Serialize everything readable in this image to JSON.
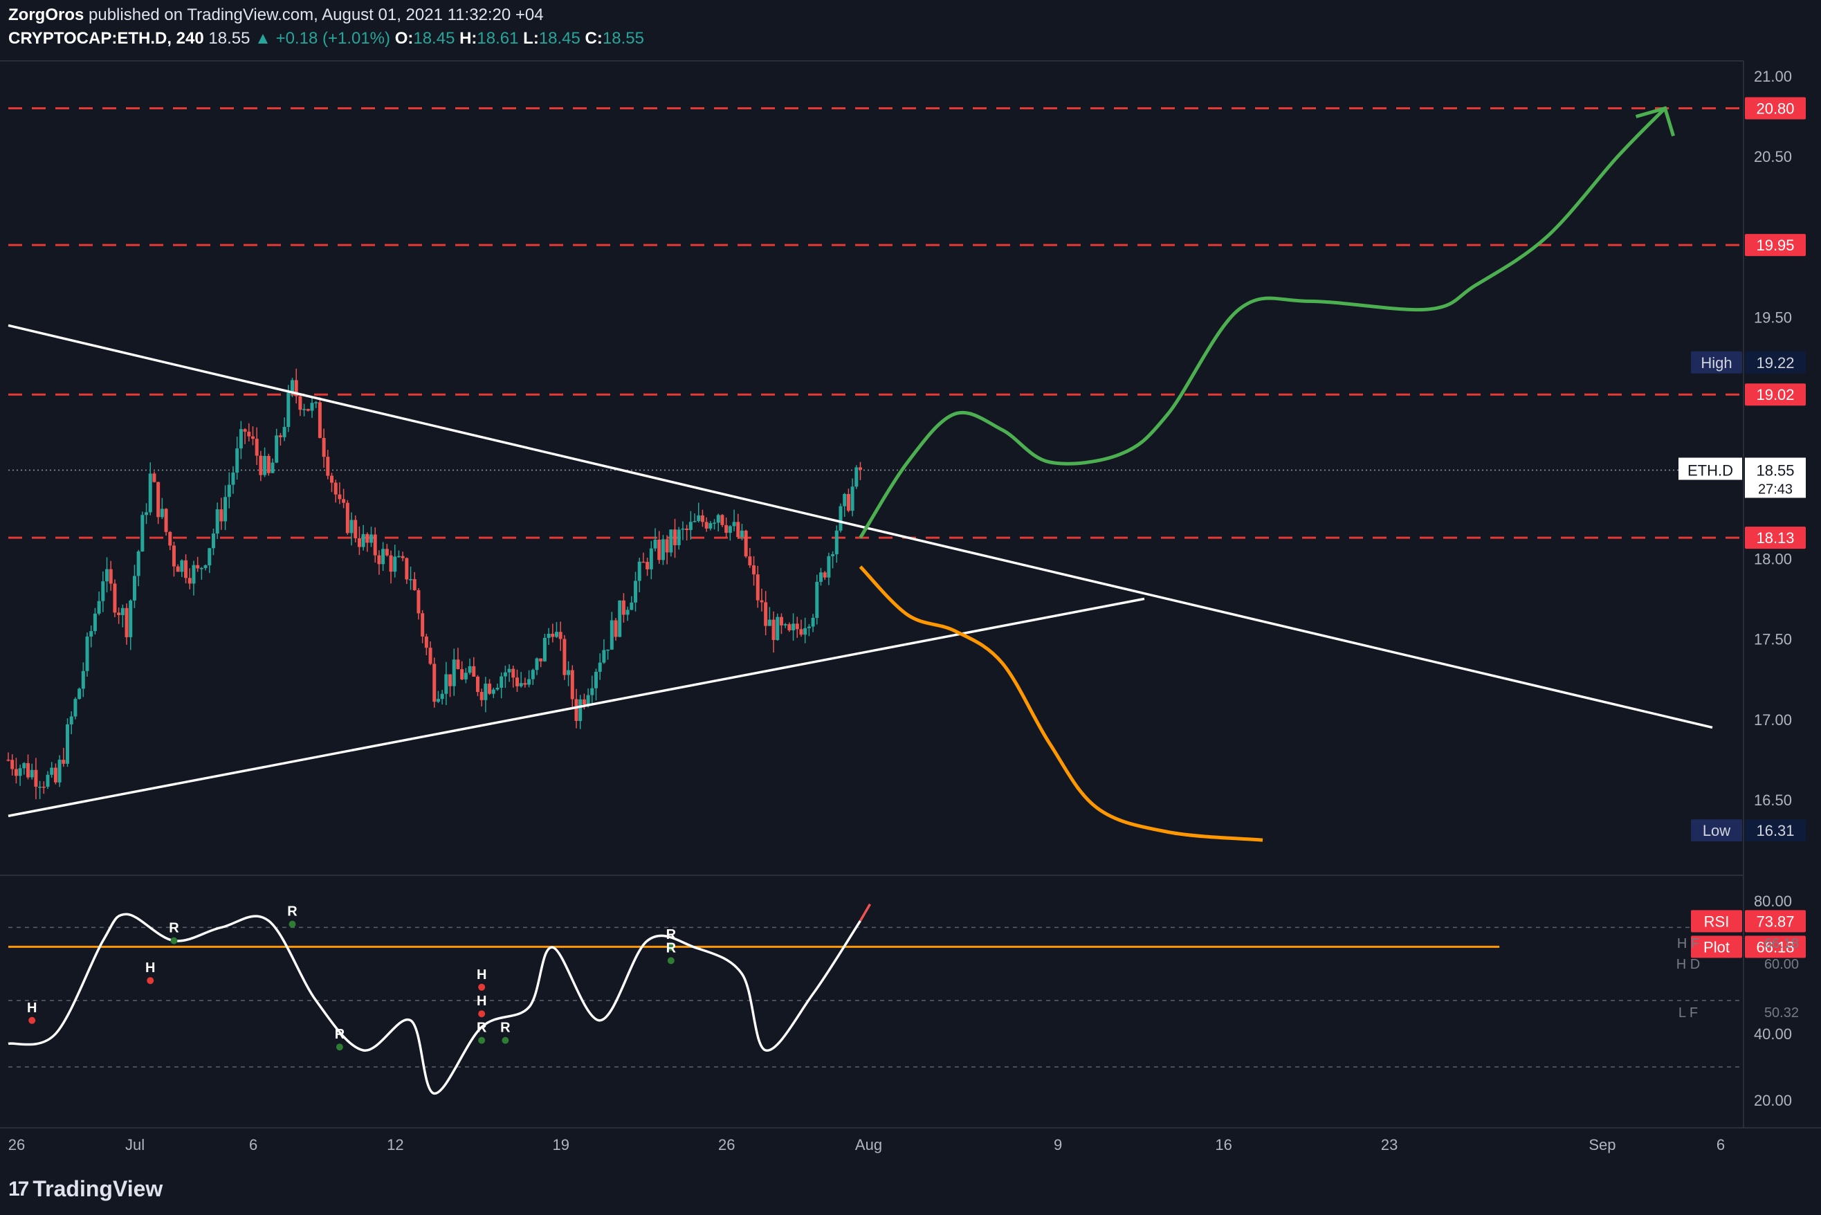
{
  "header": {
    "author": "ZorgOros",
    "published_text": "published on TradingView.com, August 01, 2021 11:32:20 +04",
    "symbol": "CRYPTOCAP:ETH.D, 240",
    "last": "18.55",
    "change": "▲ +0.18 (+1.01%)",
    "o_label": "O:",
    "o_val": "18.45",
    "h_label": "H:",
    "h_val": "18.61",
    "l_label": "L:",
    "l_val": "18.45",
    "c_label": "C:",
    "c_val": "18.55"
  },
  "footer": {
    "logo_text": "TradingView",
    "logo_mark": "17"
  },
  "colors": {
    "background": "#131722",
    "up": "#26a69a",
    "down": "#ef5350",
    "level_line": "#e53935",
    "trendline": "#ffffff",
    "bull_path": "#4caf50",
    "bear_path": "#ff9800",
    "rsi_line": "#ffffff",
    "rsi_hline": "#ff9800"
  },
  "price_axis": {
    "ticks": [
      "21.00",
      "20.50",
      "19.50",
      "18.00",
      "17.50",
      "17.00",
      "16.50"
    ],
    "level_tags": [
      "20.80",
      "19.95",
      "19.02",
      "18.13"
    ],
    "high_tag": {
      "label": "High",
      "value": "19.22"
    },
    "low_tag": {
      "label": "Low",
      "value": "16.31"
    },
    "last_tag": {
      "label": "ETH.D",
      "value": "18.55",
      "countdown": "27:43"
    }
  },
  "rsi_axis": {
    "ticks": [
      "80.00",
      "40.00",
      "20.00"
    ],
    "rsi_tag": {
      "label": "RSI",
      "value": "73.87"
    },
    "plot_tag": {
      "label": "Plot",
      "value": "66.18"
    },
    "side_labels": [
      "H F",
      "66.18",
      "H D",
      "60.00",
      "L F",
      "50.32"
    ]
  },
  "rsi_markers": [
    "H",
    "R",
    "H",
    "R",
    "R",
    "H",
    "R",
    "H",
    "R",
    "R",
    "R"
  ],
  "time_axis": [
    "26",
    "Jul",
    "6",
    "12",
    "19",
    "26",
    "Aug",
    "9",
    "16",
    "23",
    "Sep",
    "6"
  ],
  "chart_data": [
    {
      "type": "candlestick",
      "symbol": "CRYPTOCAP:ETH.D",
      "interval": "240",
      "x_range": [
        "2021-06-26",
        "2021-09-06"
      ],
      "ylim": [
        16.2,
        21.1
      ],
      "close_path": [
        [
          "2021-06-26",
          16.75
        ],
        [
          "2021-06-28",
          16.6
        ],
        [
          "2021-06-29",
          17.2
        ],
        [
          "2021-06-30",
          17.9
        ],
        [
          "2021-07-01",
          17.6
        ],
        [
          "2021-07-02",
          18.5
        ],
        [
          "2021-07-03",
          18.0
        ],
        [
          "2021-07-04",
          17.9
        ],
        [
          "2021-07-05",
          18.3
        ],
        [
          "2021-07-06",
          18.8
        ],
        [
          "2021-07-07",
          18.5
        ],
        [
          "2021-07-08",
          19.05
        ],
        [
          "2021-07-09",
          18.9
        ],
        [
          "2021-07-10",
          18.3
        ],
        [
          "2021-07-11",
          18.1
        ],
        [
          "2021-07-12",
          18.0
        ],
        [
          "2021-07-13",
          17.9
        ],
        [
          "2021-07-14",
          17.2
        ],
        [
          "2021-07-15",
          17.3
        ],
        [
          "2021-07-16",
          17.2
        ],
        [
          "2021-07-17",
          17.3
        ],
        [
          "2021-07-18",
          17.2
        ],
        [
          "2021-07-19",
          17.6
        ],
        [
          "2021-07-20",
          17.05
        ],
        [
          "2021-07-21",
          17.4
        ],
        [
          "2021-07-22",
          17.7
        ],
        [
          "2021-07-23",
          18.0
        ],
        [
          "2021-07-24",
          18.1
        ],
        [
          "2021-07-25",
          18.2
        ],
        [
          "2021-07-26",
          18.3
        ],
        [
          "2021-07-27",
          18.1
        ],
        [
          "2021-07-28",
          17.6
        ],
        [
          "2021-07-29",
          17.5
        ],
        [
          "2021-07-30",
          17.7
        ],
        [
          "2021-07-31",
          18.2
        ],
        [
          "2021-08-01",
          18.55
        ]
      ],
      "horizontal_levels": [
        20.8,
        19.95,
        19.02,
        18.13
      ],
      "last_price": 18.55,
      "period_high": 19.22,
      "period_low": 16.31,
      "descending_trendline": [
        [
          "2021-06-26",
          19.45
        ],
        [
          "2021-09-06",
          16.95
        ]
      ],
      "ascending_trendline": [
        [
          "2021-06-26",
          16.4
        ],
        [
          "2021-08-13",
          17.75
        ]
      ],
      "bullish_projection": [
        [
          "2021-08-01",
          18.13
        ],
        [
          "2021-08-03",
          18.6
        ],
        [
          "2021-08-05",
          18.9
        ],
        [
          "2021-08-07",
          18.8
        ],
        [
          "2021-08-09",
          18.6
        ],
        [
          "2021-08-12",
          18.65
        ],
        [
          "2021-08-14",
          18.9
        ],
        [
          "2021-08-17",
          19.55
        ],
        [
          "2021-08-20",
          19.6
        ],
        [
          "2021-08-25",
          19.55
        ],
        [
          "2021-08-27",
          19.7
        ],
        [
          "2021-08-30",
          20.0
        ],
        [
          "2021-09-02",
          20.5
        ],
        [
          "2021-09-04",
          20.8
        ]
      ],
      "bearish_projection": [
        [
          "2021-08-01",
          17.95
        ],
        [
          "2021-08-03",
          17.65
        ],
        [
          "2021-08-05",
          17.55
        ],
        [
          "2021-08-07",
          17.35
        ],
        [
          "2021-08-09",
          16.85
        ],
        [
          "2021-08-11",
          16.45
        ],
        [
          "2021-08-14",
          16.3
        ],
        [
          "2021-08-18",
          16.25
        ]
      ]
    },
    {
      "type": "line",
      "name": "RSI",
      "ylim": [
        15,
        85
      ],
      "last_value": 73.87,
      "reference_line": 66.18,
      "x": [
        "2021-06-26",
        "2021-06-28",
        "2021-06-30",
        "2021-07-01",
        "2021-07-03",
        "2021-07-05",
        "2021-07-07",
        "2021-07-09",
        "2021-07-11",
        "2021-07-13",
        "2021-07-14",
        "2021-07-16",
        "2021-07-18",
        "2021-07-19",
        "2021-07-21",
        "2021-07-23",
        "2021-07-25",
        "2021-07-27",
        "2021-07-28",
        "2021-07-30",
        "2021-08-01"
      ],
      "values": [
        37,
        40,
        68,
        76,
        68,
        72,
        74,
        50,
        35,
        44,
        22,
        42,
        48,
        66,
        44,
        68,
        66,
        58,
        35,
        52,
        74
      ]
    }
  ]
}
